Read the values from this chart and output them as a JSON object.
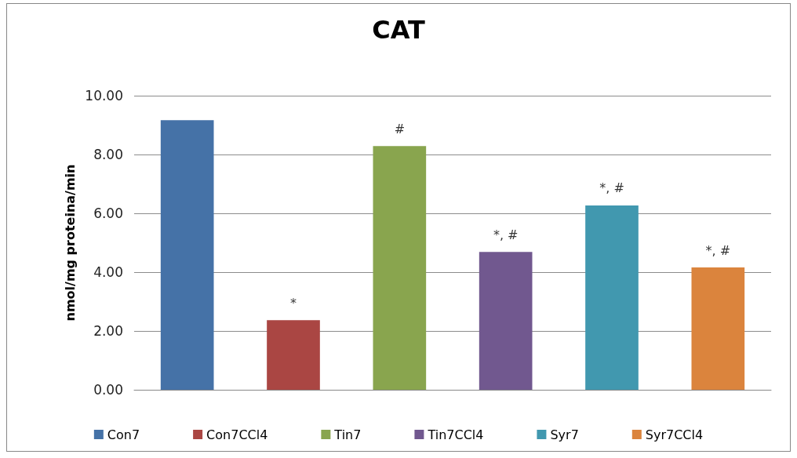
{
  "chart_data": {
    "type": "bar",
    "title": "CAT",
    "ylabel": "nmol/mg proteina/min",
    "categories": [
      null,
      null,
      null,
      null,
      null,
      null
    ],
    "series": [
      {
        "name": "Con7",
        "color": "#4572a7",
        "values": [
          9.17,
          null,
          null,
          null,
          null,
          null
        ]
      },
      {
        "name": "Con7CCl4",
        "color": "#aa4643",
        "values": [
          null,
          2.37,
          null,
          null,
          null,
          null
        ]
      },
      {
        "name": "Tin7",
        "color": "#89a54e",
        "values": [
          null,
          null,
          8.29,
          null,
          null,
          null
        ]
      },
      {
        "name": "Tin7CCl4",
        "color": "#71588f",
        "values": [
          null,
          null,
          null,
          4.69,
          null,
          null
        ]
      },
      {
        "name": "Syr7",
        "color": "#4198af",
        "values": [
          null,
          null,
          null,
          null,
          6.27,
          null
        ]
      },
      {
        "name": "Syr7CCl4",
        "color": "#db843d",
        "values": [
          null,
          null,
          null,
          null,
          null,
          4.16
        ]
      }
    ],
    "annotations": [
      {
        "text": "*",
        "y": 2.37
      },
      {
        "text": "#",
        "y": 8.29
      },
      {
        "text": "*, #",
        "y": 4.69
      },
      {
        "text": "*, #",
        "y": 6.27
      },
      {
        "text": "*, #",
        "y": 4.16
      }
    ],
    "ylim": [
      0,
      10
    ],
    "yticks": [
      {
        "value": 0,
        "label": "0.00"
      },
      {
        "value": 2,
        "label": "2.00"
      },
      {
        "value": 4,
        "label": "4.00"
      },
      {
        "value": 6,
        "label": "6.00"
      },
      {
        "value": 8,
        "label": "8.00"
      },
      {
        "value": 10,
        "label": "10.00"
      }
    ],
    "grid": "y",
    "legend": "bottom"
  }
}
